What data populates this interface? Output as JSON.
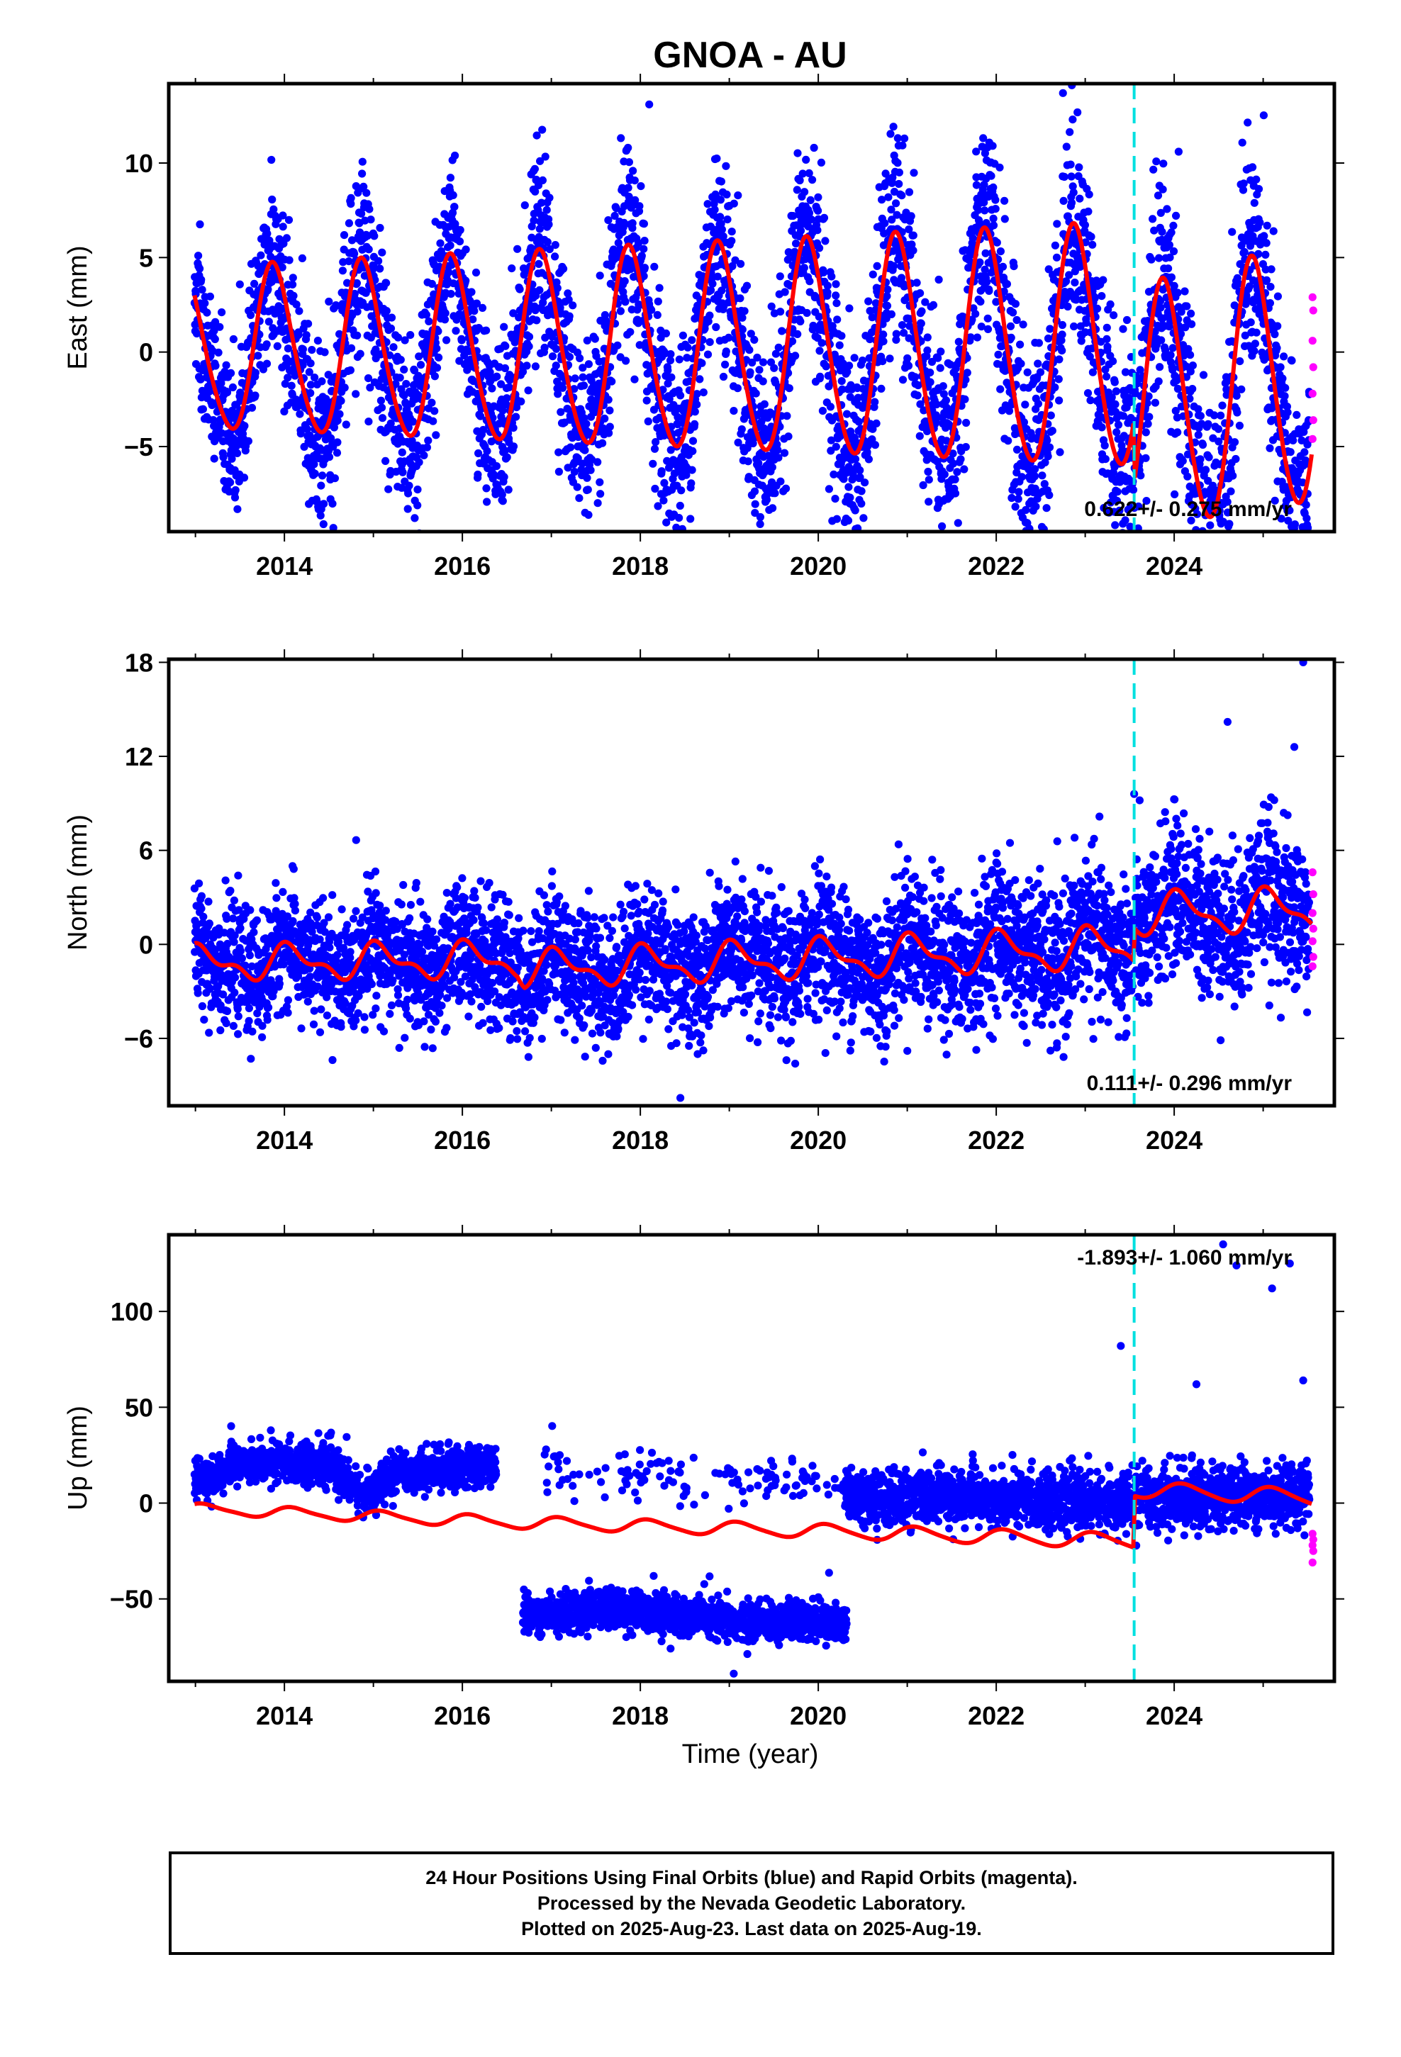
{
  "title": "GNOA - AU",
  "xlabel": "Time (year)",
  "colors": {
    "final": "#0000ff",
    "rapid": "#ff00ff",
    "model": "#ff0000",
    "break": "#00e0e0",
    "frame": "#000000"
  },
  "chart_data": [
    {
      "type": "scatter",
      "name": "east",
      "ylabel": "East (mm)",
      "xlim": [
        2012.7,
        2025.8
      ],
      "ylim": [
        -9.5,
        14.2
      ],
      "xticks": [
        2014,
        2016,
        2018,
        2020,
        2022,
        2024
      ],
      "yticks": [
        -5,
        0,
        5,
        10
      ],
      "rate": "0.622+/- 0.275 mm/yr",
      "break": 2023.55,
      "start": 2012.99,
      "end": 2025.52,
      "gaps": [],
      "model": {
        "knots": [
          [
            2012.99,
            0
          ],
          [
            2023.54,
            0.2
          ],
          [
            2023.56,
            -3.2
          ],
          [
            2025.55,
            -1.3
          ]
        ],
        "a1": 4.2,
        "a1_growth": 0.05,
        "phase": 2.3,
        "a2": 0.5
      },
      "scatter_sd": 2.2,
      "rapid": [
        2.9,
        2.2,
        0.6,
        -0.8,
        -2.2,
        -3.6,
        -4.6
      ],
      "outliers": [
        [
          2017.55,
          -7.5
        ],
        [
          2018.1,
          13.1
        ],
        [
          2022.75,
          13.7
        ],
        [
          2024.05,
          10.6
        ],
        [
          2023.45,
          -8.9
        ],
        [
          2014.55,
          -9.3
        ]
      ]
    },
    {
      "type": "scatter",
      "name": "north",
      "ylabel": "North (mm)",
      "xlim": [
        2012.7,
        2025.8
      ],
      "ylim": [
        -10.3,
        18.2
      ],
      "xticks": [
        2014,
        2016,
        2018,
        2020,
        2022,
        2024
      ],
      "yticks": [
        -6,
        0,
        6,
        12,
        18
      ],
      "rate": "0.111+/- 0.296 mm/yr",
      "break": 2023.55,
      "start": 2012.99,
      "end": 2025.52,
      "gaps": [],
      "model": {
        "knots": [
          [
            2012.99,
            -1.2
          ],
          [
            2016.62,
            -1.0
          ],
          [
            2016.7,
            -1.6
          ],
          [
            2023.54,
            -0.2
          ],
          [
            2023.56,
            1.9
          ],
          [
            2025.55,
            2.2
          ]
        ],
        "a1": 0.9,
        "a1_growth": 0.03,
        "phase": 1.1,
        "a2": 0.5
      },
      "scatter_sd": 1.8,
      "rapid": [
        4.6,
        3.2,
        2.0,
        1.0,
        0.2,
        -0.8,
        -1.4
      ],
      "outliers": [
        [
          2025.45,
          18.0
        ],
        [
          2024.6,
          14.2
        ],
        [
          2018.45,
          -9.8
        ],
        [
          2025.35,
          12.6
        ],
        [
          2023.55,
          9.6
        ]
      ]
    },
    {
      "type": "scatter",
      "name": "up",
      "ylabel": "Up (mm)",
      "xlim": [
        2012.7,
        2025.8
      ],
      "ylim": [
        -93,
        140
      ],
      "xticks": [
        2014,
        2016,
        2018,
        2020,
        2022,
        2024
      ],
      "yticks": [
        -50,
        0,
        50,
        100
      ],
      "rate": "-1.893+/- 1.060 mm/yr",
      "break": 2023.55,
      "start": 2012.99,
      "end": 2025.52,
      "gaps": [
        [
          2016.38,
          2016.68
        ]
      ],
      "model": {
        "knots": [
          [
            2012.99,
            -3
          ],
          [
            2016.5,
            -10
          ],
          [
            2020.3,
            -15
          ],
          [
            2023.54,
            -20
          ],
          [
            2023.56,
            7
          ],
          [
            2025.55,
            3
          ]
        ],
        "a1": 2.6,
        "a1_growth": 0.05,
        "phase": 0.9,
        "a2": 0.6
      },
      "segments": [
        {
          "from": 2012.99,
          "to": 2016.38,
          "knots": [
            [
              2012.99,
              10
            ],
            [
              2013.6,
              22
            ],
            [
              2014.5,
              20
            ],
            [
              2014.9,
              4
            ],
            [
              2015.3,
              16
            ],
            [
              2016.38,
              20
            ]
          ],
          "sd": 5
        },
        {
          "from": 2016.68,
          "to": 2020.32,
          "knots": [
            [
              2016.68,
              -58
            ],
            [
              2017.8,
              -55
            ],
            [
              2019.0,
              -62
            ],
            [
              2020.32,
              -63
            ]
          ],
          "sd": 5
        },
        {
          "from": 2016.9,
          "to": 2020.3,
          "knots": [
            [
              2016.9,
              20
            ],
            [
              2018.0,
              14
            ],
            [
              2020.3,
              10
            ]
          ],
          "sd": 7,
          "sparse": 0.08
        },
        {
          "from": 2020.3,
          "to": 2023.54,
          "knots": [
            [
              2020.3,
              2
            ],
            [
              2021.5,
              3
            ],
            [
              2023.54,
              0
            ]
          ],
          "sd": 7
        },
        {
          "from": 2023.56,
          "to": 2025.52,
          "knots": [
            [
              2023.56,
              2
            ],
            [
              2025.52,
              5
            ]
          ],
          "sd": 8
        }
      ],
      "rapid": [
        -16,
        -19,
        -22,
        -25,
        -31
      ],
      "outliers": [
        [
          2023.4,
          82
        ],
        [
          2024.55,
          135
        ],
        [
          2024.7,
          124
        ],
        [
          2025.3,
          125
        ],
        [
          2025.1,
          112
        ],
        [
          2024.25,
          62
        ],
        [
          2025.45,
          64
        ],
        [
          2019.05,
          -89
        ],
        [
          2018.15,
          -38
        ]
      ]
    }
  ],
  "caption": [
    "24 Hour Positions Using Final Orbits (blue) and Rapid Orbits (magenta).",
    "Processed by the Nevada Geodetic Laboratory.",
    "Plotted on 2025-Aug-23. Last data on 2025-Aug-19."
  ]
}
